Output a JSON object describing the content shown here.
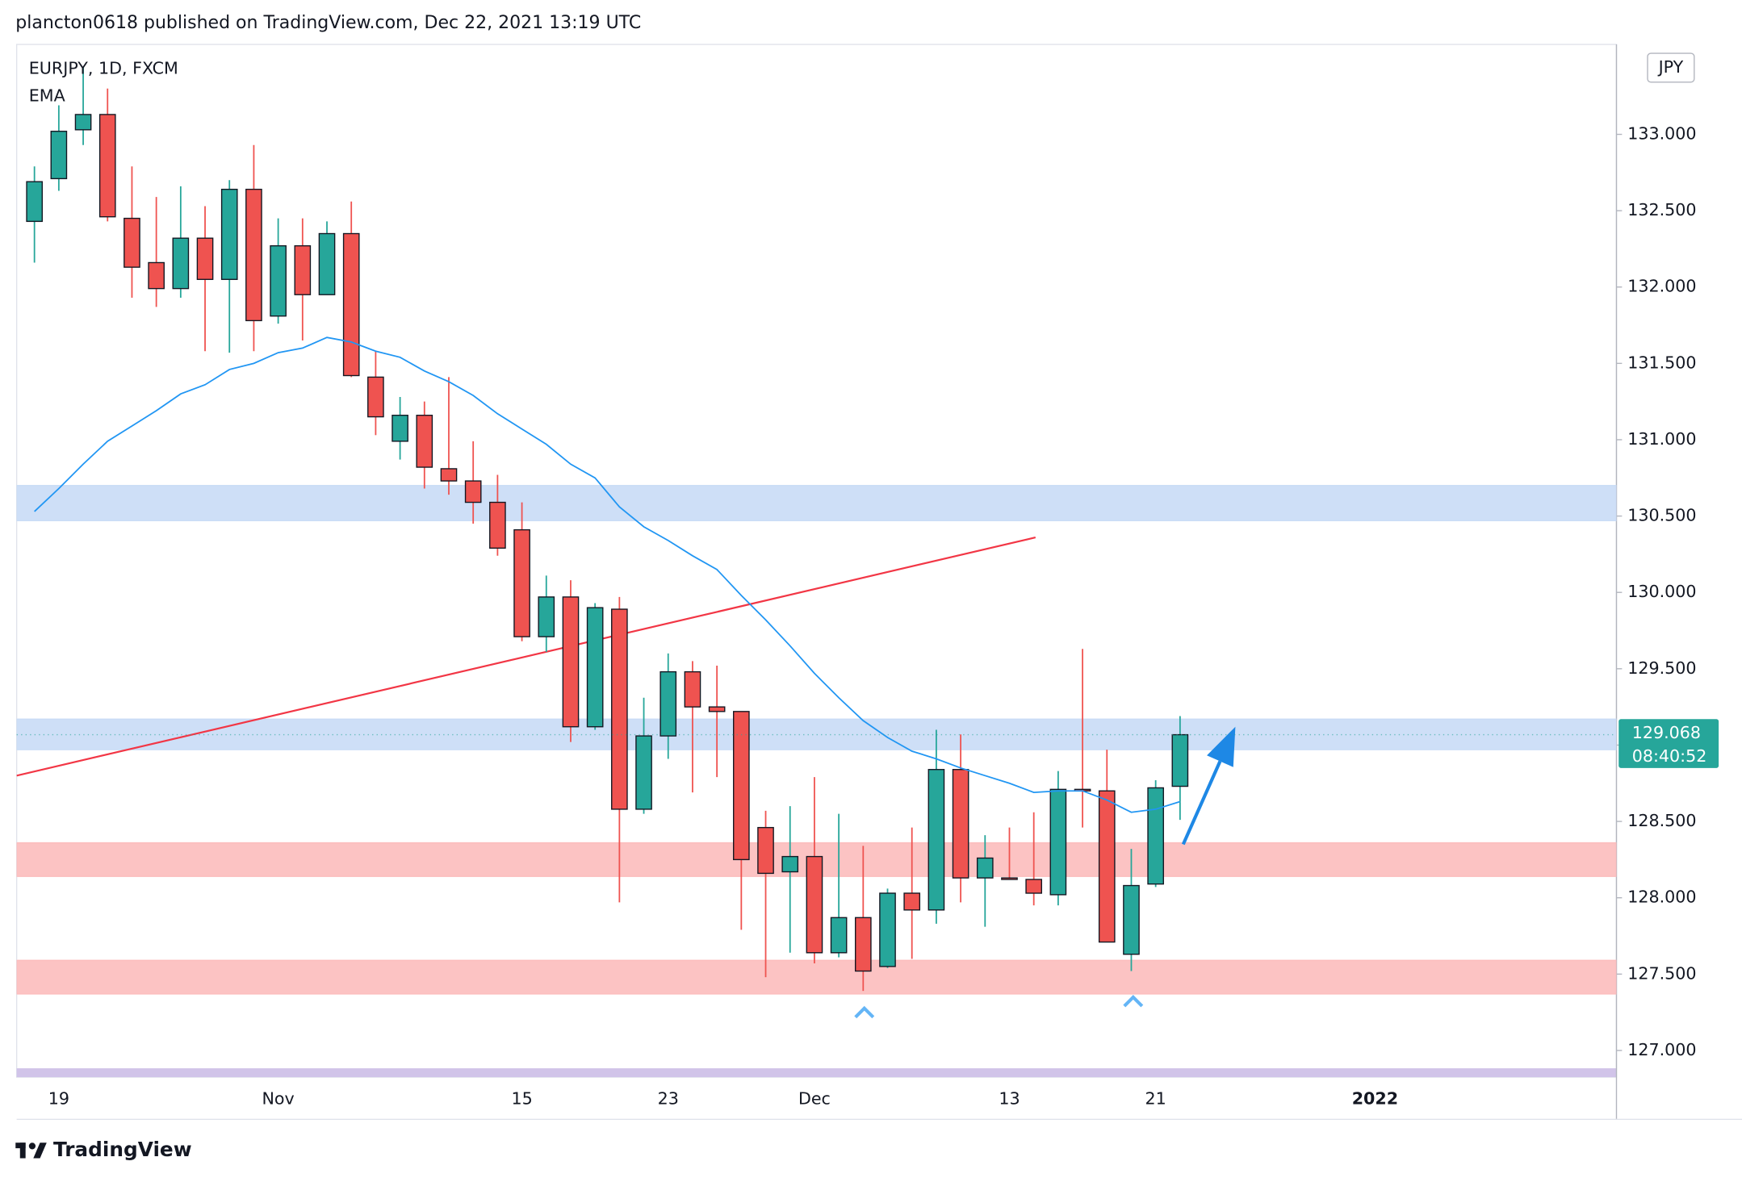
{
  "header": "plancton0618 published on TradingView.com, Dec 22, 2021 13:19 UTC",
  "footer": "TradingView",
  "chart_data": {
    "type": "candlestick",
    "currency": "JPY",
    "categories": [
      null,
      "19",
      null,
      null,
      null,
      null,
      null,
      null,
      null,
      null,
      "Nov",
      null,
      null,
      null,
      null,
      null,
      null,
      null,
      null,
      null,
      "15",
      null,
      null,
      null,
      null,
      null,
      "23",
      null,
      null,
      null,
      null,
      null,
      "Dec",
      null,
      null,
      null,
      null,
      null,
      null,
      null,
      "13",
      null,
      null,
      null,
      null,
      null,
      "21",
      null,
      null,
      null,
      null,
      null,
      null,
      null,
      null,
      "2022"
    ],
    "series": [
      {
        "name": "EURJPY, 1D, FXCM",
        "up_color": "#26a69a",
        "down_color": "#ef5350",
        "open": [
          132.43,
          132.71,
          133.03,
          133.13,
          132.45,
          132.16,
          131.99,
          132.32,
          132.05,
          132.64,
          131.81,
          132.27,
          131.95,
          132.35,
          131.41,
          130.99,
          131.16,
          130.81,
          130.73,
          130.59,
          130.41,
          129.71,
          129.97,
          129.12,
          129.89,
          128.58,
          129.06,
          129.48,
          129.25,
          129.22,
          128.46,
          128.17,
          128.27,
          127.64,
          127.87,
          127.55,
          128.03,
          127.92,
          128.84,
          128.13,
          128.13,
          128.12,
          128.02,
          128.71,
          128.7,
          127.63,
          128.09,
          128.73,
          null,
          null,
          null,
          null,
          null,
          null,
          null,
          null
        ],
        "high": [
          132.79,
          133.19,
          133.44,
          133.3,
          132.79,
          132.59,
          132.66,
          132.53,
          132.7,
          132.93,
          132.45,
          132.45,
          132.43,
          132.56,
          131.58,
          131.28,
          131.25,
          131.41,
          130.99,
          130.77,
          130.59,
          130.11,
          130.08,
          129.93,
          129.97,
          129.31,
          129.6,
          129.55,
          129.52,
          129.22,
          128.57,
          128.6,
          128.79,
          128.55,
          128.34,
          128.06,
          128.46,
          129.1,
          129.07,
          128.41,
          128.46,
          128.56,
          128.83,
          129.63,
          128.97,
          128.32,
          128.77,
          129.19,
          null,
          null,
          null,
          null,
          null,
          null,
          null,
          null
        ],
        "low": [
          132.16,
          132.63,
          132.93,
          132.43,
          131.93,
          131.87,
          131.93,
          131.58,
          131.57,
          131.58,
          131.76,
          131.65,
          131.95,
          131.41,
          131.03,
          130.87,
          130.68,
          130.64,
          130.45,
          130.24,
          129.68,
          129.61,
          129.02,
          129.1,
          127.97,
          128.55,
          128.91,
          128.69,
          128.79,
          127.79,
          127.48,
          127.64,
          127.57,
          127.61,
          127.39,
          127.54,
          127.6,
          127.83,
          127.97,
          127.81,
          128.12,
          127.95,
          127.95,
          128.46,
          127.71,
          127.52,
          128.07,
          128.51,
          null,
          null,
          null,
          null,
          null,
          null,
          null,
          null
        ],
        "close": [
          132.69,
          133.02,
          133.13,
          132.46,
          132.13,
          131.99,
          132.32,
          132.05,
          132.64,
          131.78,
          132.27,
          131.95,
          132.35,
          131.42,
          131.15,
          131.16,
          130.82,
          130.73,
          130.59,
          130.29,
          129.71,
          129.97,
          129.12,
          129.9,
          128.58,
          129.06,
          129.48,
          129.25,
          129.22,
          128.25,
          128.16,
          128.27,
          127.64,
          127.87,
          127.52,
          128.03,
          127.92,
          128.84,
          128.13,
          128.26,
          128.12,
          128.03,
          128.71,
          128.7,
          127.71,
          128.08,
          128.72,
          129.068,
          null,
          null,
          null,
          null,
          null,
          null,
          null,
          null
        ]
      },
      {
        "name": "EMA",
        "color": "#2196f3",
        "values": [
          130.53,
          130.68,
          130.84,
          130.99,
          131.09,
          131.19,
          131.3,
          131.36,
          131.46,
          131.5,
          131.57,
          131.6,
          131.67,
          131.64,
          131.58,
          131.54,
          131.45,
          131.38,
          131.29,
          131.17,
          131.07,
          130.97,
          130.84,
          130.75,
          130.56,
          130.43,
          130.34,
          130.24,
          130.15,
          129.98,
          129.82,
          129.65,
          129.47,
          129.31,
          129.16,
          129.05,
          128.96,
          128.91,
          128.85,
          128.8,
          128.75,
          128.69,
          128.7,
          128.7,
          128.64,
          128.56,
          128.58,
          128.63,
          null,
          null,
          null,
          null,
          null,
          null,
          null,
          null
        ]
      }
    ],
    "last_price": 129.068,
    "countdown": "08:40:52",
    "last_price_color": "#26a69a",
    "ylim": [
      126.825,
      133.589
    ],
    "yticks": [
      {
        "value": 127,
        "label": "127.000"
      },
      {
        "value": 127.5,
        "label": "127.500"
      },
      {
        "value": 128,
        "label": "128.000"
      },
      {
        "value": 128.5,
        "label": "128.500"
      },
      {
        "value": 129,
        "label": "129.000"
      },
      {
        "value": 129.5,
        "label": "129.500"
      },
      {
        "value": 130,
        "label": "130.000"
      },
      {
        "value": 130.5,
        "label": "130.500"
      },
      {
        "value": 131,
        "label": "131.000"
      },
      {
        "value": 131.5,
        "label": "131.500"
      },
      {
        "value": 132,
        "label": "132.000"
      },
      {
        "value": 132.5,
        "label": "132.500"
      },
      {
        "value": 133,
        "label": "133.000"
      }
    ],
    "zones": [
      {
        "low": 130.47,
        "high": 130.7,
        "color": "#c9dcf6"
      },
      {
        "low": 128.97,
        "high": 129.17,
        "color": "#c9dcf6"
      },
      {
        "low": 128.14,
        "high": 128.36,
        "color": "#fcbcbc"
      },
      {
        "low": 127.37,
        "high": 127.59,
        "color": "#fcbcbc"
      }
    ],
    "trendline": {
      "x": [
        -0.73,
        41.07
      ],
      "y": [
        128.8,
        130.36
      ],
      "color": "#f23645"
    },
    "arrow": {
      "x": [
        47.13,
        49.27
      ],
      "y": [
        128.35,
        129.12
      ],
      "color": "#1e88e5"
    }
  }
}
